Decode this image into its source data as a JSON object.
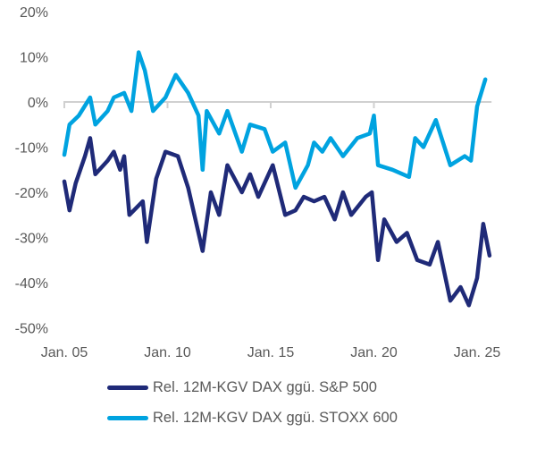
{
  "chart_data": {
    "type": "line",
    "title": "",
    "xlabel": "",
    "ylabel": "",
    "ylim": [
      -50,
      20
    ],
    "yticks": [
      20,
      10,
      0,
      -10,
      -20,
      -30,
      -40,
      -50
    ],
    "ytick_labels": [
      "20%",
      "10%",
      "0%",
      "-10%",
      "-20%",
      "-30%",
      "-40%",
      "-50%"
    ],
    "xlim": [
      2005,
      2025.7
    ],
    "xticks": [
      2005,
      2010,
      2015,
      2020,
      2025
    ],
    "xtick_labels": [
      "Jan. 05",
      "Jan. 10",
      "Jan. 15",
      "Jan. 20",
      "Jan. 25"
    ],
    "grid": false,
    "legend_position": "bottom",
    "series": [
      {
        "name": "Rel. 12M-KGV DAX ggü. S&P 500",
        "color": "#1f2a78",
        "x": [
          2005.0,
          2005.25,
          2005.55,
          2006.0,
          2006.25,
          2006.5,
          2007.1,
          2007.4,
          2007.7,
          2007.9,
          2008.15,
          2008.8,
          2009.0,
          2009.45,
          2009.9,
          2010.5,
          2011.0,
          2011.7,
          2012.1,
          2012.5,
          2012.9,
          2013.6,
          2014.0,
          2014.4,
          2015.1,
          2015.7,
          2016.2,
          2016.6,
          2017.1,
          2017.6,
          2018.1,
          2018.5,
          2018.9,
          2019.6,
          2019.9,
          2020.2,
          2020.5,
          2021.1,
          2021.6,
          2022.1,
          2022.7,
          2023.1,
          2023.7,
          2024.2,
          2024.6,
          2025.0,
          2025.3,
          2025.6
        ],
        "y": [
          -17.6,
          -24,
          -18,
          -12,
          -8,
          -16,
          -13,
          -11,
          -15,
          -12,
          -25,
          -22,
          -31,
          -17,
          -11,
          -12,
          -19,
          -33,
          -20,
          -25,
          -14,
          -20,
          -16,
          -21,
          -14,
          -25,
          -24,
          -21,
          -22,
          -21,
          -26,
          -20,
          -25,
          -21,
          -20,
          -35,
          -26,
          -31,
          -29,
          -35,
          -36,
          -31,
          -44,
          -41,
          -45,
          -39,
          -27,
          -34
        ]
      },
      {
        "name": "Rel. 12M-KGV DAX ggü. STOXX 600",
        "color": "#00a3e0",
        "x": [
          2005.0,
          2005.25,
          2005.7,
          2006.25,
          2006.5,
          2007.1,
          2007.4,
          2007.9,
          2008.25,
          2008.6,
          2008.9,
          2009.3,
          2009.9,
          2010.4,
          2011.0,
          2011.5,
          2011.7,
          2011.9,
          2012.5,
          2012.9,
          2013.6,
          2014.0,
          2014.7,
          2015.1,
          2015.7,
          2016.2,
          2016.8,
          2017.1,
          2017.5,
          2017.9,
          2018.5,
          2019.2,
          2019.8,
          2020.0,
          2020.2,
          2020.9,
          2021.7,
          2022.0,
          2022.4,
          2023.0,
          2023.7,
          2024.4,
          2024.7,
          2025.0,
          2025.4
        ],
        "y": [
          -11.7,
          -5,
          -3,
          1,
          -5,
          -2,
          1,
          2,
          -2,
          11,
          7,
          -2,
          1,
          6,
          2,
          -3,
          -15,
          -2,
          -7,
          -2,
          -11,
          -5,
          -6,
          -11,
          -9,
          -19,
          -14,
          -9,
          -11,
          -8,
          -12,
          -8,
          -7,
          -3,
          -14,
          -15,
          -16.6,
          -8,
          -10,
          -4,
          -14,
          -12,
          -13,
          -1,
          5
        ]
      }
    ]
  }
}
